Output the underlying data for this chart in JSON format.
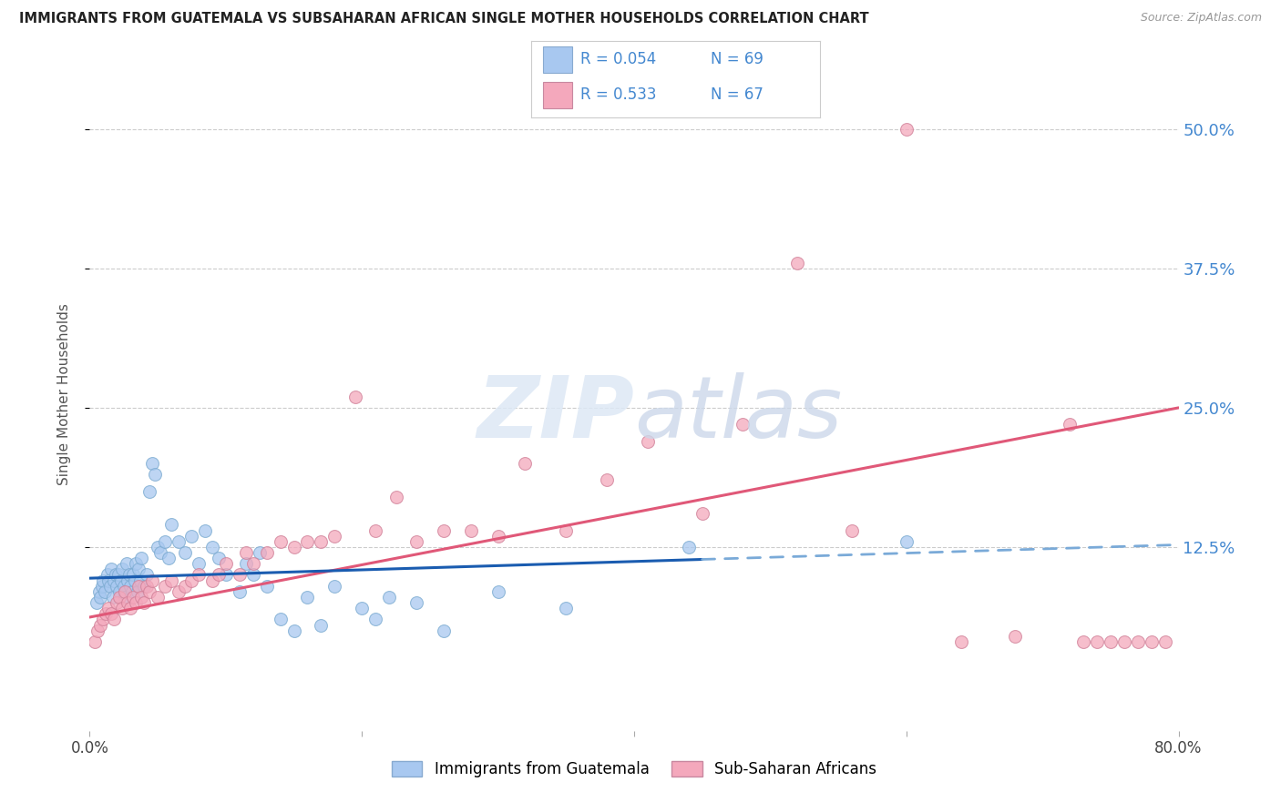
{
  "title": "IMMIGRANTS FROM GUATEMALA VS SUBSAHARAN AFRICAN SINGLE MOTHER HOUSEHOLDS CORRELATION CHART",
  "source": "Source: ZipAtlas.com",
  "ylabel": "Single Mother Households",
  "ytick_labels": [
    "50.0%",
    "37.5%",
    "25.0%",
    "12.5%"
  ],
  "ytick_values": [
    0.5,
    0.375,
    0.25,
    0.125
  ],
  "xmin": 0.0,
  "xmax": 0.8,
  "ymin": -0.04,
  "ymax": 0.565,
  "legend_label_blue": "Immigrants from Guatemala",
  "legend_label_pink": "Sub-Saharan Africans",
  "color_blue": "#a8c8f0",
  "color_pink": "#f4a8bc",
  "color_blue_line": "#1a5cb0",
  "color_blue_line_dash": "#7aaad8",
  "color_pink_line": "#e05878",
  "color_axis_labels": "#4488d0",
  "blue_r": "R = 0.054",
  "blue_n": "N = 69",
  "pink_r": "R = 0.533",
  "pink_n": "N = 67",
  "blue_line_solid_end": 0.45,
  "blue_line_y_start": 0.097,
  "blue_line_y_end": 0.127,
  "pink_line_y_start": 0.062,
  "pink_line_y_end": 0.25,
  "blue_x": [
    0.005,
    0.007,
    0.008,
    0.009,
    0.01,
    0.011,
    0.013,
    0.014,
    0.015,
    0.016,
    0.017,
    0.018,
    0.019,
    0.02,
    0.021,
    0.022,
    0.023,
    0.024,
    0.025,
    0.026,
    0.027,
    0.028,
    0.029,
    0.03,
    0.031,
    0.032,
    0.033,
    0.034,
    0.035,
    0.036,
    0.037,
    0.038,
    0.04,
    0.042,
    0.044,
    0.046,
    0.048,
    0.05,
    0.052,
    0.055,
    0.058,
    0.06,
    0.065,
    0.07,
    0.075,
    0.08,
    0.085,
    0.09,
    0.095,
    0.1,
    0.11,
    0.115,
    0.12,
    0.125,
    0.13,
    0.14,
    0.15,
    0.16,
    0.17,
    0.18,
    0.2,
    0.21,
    0.22,
    0.24,
    0.26,
    0.3,
    0.35,
    0.44,
    0.6
  ],
  "blue_y": [
    0.075,
    0.085,
    0.08,
    0.09,
    0.095,
    0.085,
    0.1,
    0.095,
    0.09,
    0.105,
    0.08,
    0.095,
    0.1,
    0.09,
    0.1,
    0.085,
    0.095,
    0.105,
    0.09,
    0.08,
    0.11,
    0.095,
    0.1,
    0.09,
    0.085,
    0.1,
    0.095,
    0.11,
    0.085,
    0.105,
    0.095,
    0.115,
    0.09,
    0.1,
    0.175,
    0.2,
    0.19,
    0.125,
    0.12,
    0.13,
    0.115,
    0.145,
    0.13,
    0.12,
    0.135,
    0.11,
    0.14,
    0.125,
    0.115,
    0.1,
    0.085,
    0.11,
    0.1,
    0.12,
    0.09,
    0.06,
    0.05,
    0.08,
    0.055,
    0.09,
    0.07,
    0.06,
    0.08,
    0.075,
    0.05,
    0.085,
    0.07,
    0.125,
    0.13
  ],
  "pink_x": [
    0.004,
    0.006,
    0.008,
    0.01,
    0.012,
    0.014,
    0.016,
    0.018,
    0.02,
    0.022,
    0.024,
    0.026,
    0.028,
    0.03,
    0.032,
    0.034,
    0.036,
    0.038,
    0.04,
    0.042,
    0.044,
    0.046,
    0.05,
    0.055,
    0.06,
    0.065,
    0.07,
    0.075,
    0.08,
    0.09,
    0.095,
    0.1,
    0.11,
    0.115,
    0.12,
    0.13,
    0.14,
    0.15,
    0.16,
    0.17,
    0.18,
    0.195,
    0.21,
    0.225,
    0.24,
    0.26,
    0.28,
    0.3,
    0.32,
    0.35,
    0.38,
    0.41,
    0.45,
    0.48,
    0.52,
    0.56,
    0.6,
    0.64,
    0.68,
    0.72,
    0.73,
    0.74,
    0.75,
    0.76,
    0.77,
    0.78,
    0.79
  ],
  "pink_y": [
    0.04,
    0.05,
    0.055,
    0.06,
    0.065,
    0.07,
    0.065,
    0.06,
    0.075,
    0.08,
    0.07,
    0.085,
    0.075,
    0.07,
    0.08,
    0.075,
    0.09,
    0.08,
    0.075,
    0.09,
    0.085,
    0.095,
    0.08,
    0.09,
    0.095,
    0.085,
    0.09,
    0.095,
    0.1,
    0.095,
    0.1,
    0.11,
    0.1,
    0.12,
    0.11,
    0.12,
    0.13,
    0.125,
    0.13,
    0.13,
    0.135,
    0.26,
    0.14,
    0.17,
    0.13,
    0.14,
    0.14,
    0.135,
    0.2,
    0.14,
    0.185,
    0.22,
    0.155,
    0.235,
    0.38,
    0.14,
    0.5,
    0.04,
    0.045,
    0.235,
    0.04,
    0.04,
    0.04,
    0.04,
    0.04,
    0.04,
    0.04
  ]
}
